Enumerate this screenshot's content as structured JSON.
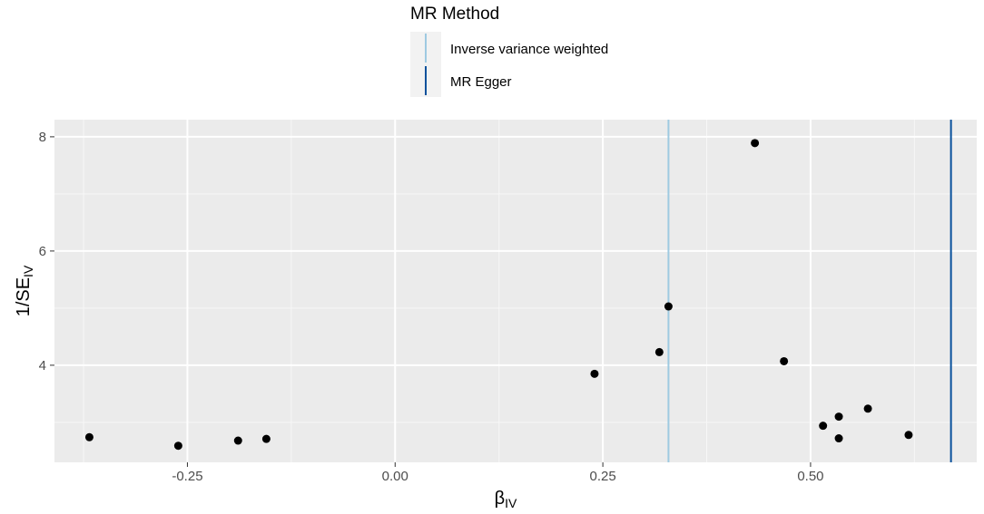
{
  "chart_data": {
    "type": "scatter",
    "xlabel_main": "β",
    "xlabel_sub": "IV",
    "ylabel_main": "1/SE",
    "ylabel_sub": "IV",
    "xlim": [
      -0.41,
      0.7
    ],
    "ylim": [
      2.3,
      8.3
    ],
    "x_ticks": [
      -0.25,
      0.0,
      0.25,
      0.5
    ],
    "x_tick_labels": [
      "-0.25",
      "0.00",
      "0.25",
      "0.50"
    ],
    "y_ticks": [
      4,
      6,
      8
    ],
    "y_tick_labels": [
      "4",
      "6",
      "8"
    ],
    "grid": true,
    "legend_position": "top",
    "legend": {
      "title": "MR Method",
      "entries": [
        {
          "label": "Inverse variance weighted",
          "color": "#9ecae1"
        },
        {
          "label": "MR Egger",
          "color": "#08519c"
        }
      ]
    },
    "vlines": [
      {
        "method": "Inverse variance weighted",
        "x": 0.329,
        "color": "#9ecae1"
      },
      {
        "method": "MR Egger",
        "x": 0.669,
        "color": "#08519c"
      }
    ],
    "points": [
      {
        "x": -0.368,
        "y": 2.74
      },
      {
        "x": -0.261,
        "y": 2.59
      },
      {
        "x": -0.189,
        "y": 2.68
      },
      {
        "x": -0.155,
        "y": 2.71
      },
      {
        "x": 0.24,
        "y": 3.85
      },
      {
        "x": 0.318,
        "y": 4.23
      },
      {
        "x": 0.329,
        "y": 5.03
      },
      {
        "x": 0.433,
        "y": 7.89
      },
      {
        "x": 0.468,
        "y": 4.07
      },
      {
        "x": 0.515,
        "y": 2.94
      },
      {
        "x": 0.534,
        "y": 3.1
      },
      {
        "x": 0.534,
        "y": 2.72
      },
      {
        "x": 0.569,
        "y": 3.24
      },
      {
        "x": 0.618,
        "y": 2.78
      }
    ]
  },
  "colors": {
    "panel_bg": "#ebebeb",
    "grid_major": "#ffffff",
    "point": "#000000"
  }
}
